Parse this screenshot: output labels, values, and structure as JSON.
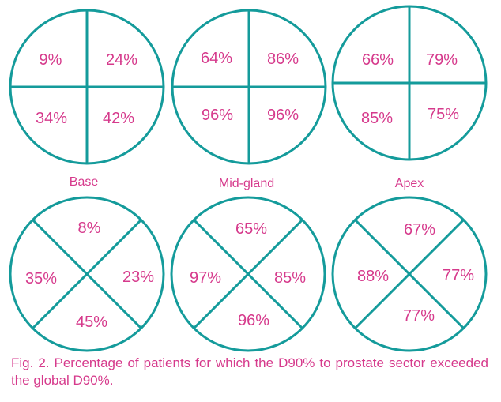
{
  "colors": {
    "circle": "#149b9b",
    "text": "#d63a8c",
    "background": "#ffffff"
  },
  "top_row": [
    {
      "label": "Base",
      "values": {
        "top_left": "9%",
        "top_right": "24%",
        "bottom_left": "34%",
        "bottom_right": "42%"
      }
    },
    {
      "label": "Mid-gland",
      "values": {
        "top_left": "64%",
        "top_right": "86%",
        "bottom_left": "96%",
        "bottom_right": "96%"
      }
    },
    {
      "label": "Apex",
      "values": {
        "top_left": "66%",
        "top_right": "79%",
        "bottom_left": "85%",
        "bottom_right": "75%"
      }
    }
  ],
  "bottom_row": [
    {
      "values": {
        "top": "8%",
        "left": "35%",
        "right": "23%",
        "bottom": "45%"
      }
    },
    {
      "values": {
        "top": "65%",
        "left": "97%",
        "right": "85%",
        "bottom": "96%"
      }
    },
    {
      "values": {
        "top": "67%",
        "left": "88%",
        "right": "77%",
        "bottom": "77%"
      }
    }
  ],
  "caption": "Fig. 2. Percentage of patients for which the D90% to prostate sector exceeded the global D90%."
}
